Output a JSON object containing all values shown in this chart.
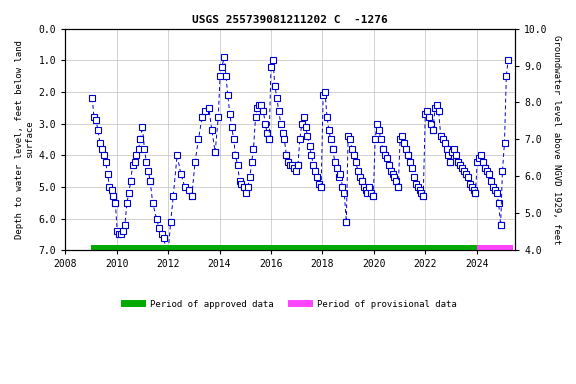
{
  "title": "USGS 255739081211202 C  -1276",
  "ylabel_left": "Depth to water level, feet below land\nsurface",
  "ylabel_right": "Groundwater level above NGVD 1929, feet",
  "ylim_left": [
    7.0,
    0.0
  ],
  "ylim_right": [
    4.0,
    10.0
  ],
  "xlim": [
    2008.0,
    2025.5
  ],
  "xticks": [
    2008,
    2010,
    2012,
    2014,
    2016,
    2018,
    2020,
    2022,
    2024
  ],
  "yticks_left": [
    0.0,
    1.0,
    2.0,
    3.0,
    4.0,
    5.0,
    6.0,
    7.0
  ],
  "yticks_right": [
    10.0,
    9.0,
    8.0,
    7.0,
    6.0,
    5.0,
    4.0
  ],
  "background_color": "#ffffff",
  "grid_color": "#c0c0c0",
  "data_color": "#0000cc",
  "approved_color": "#00aa00",
  "provisional_color": "#ff44ff",
  "approved_start": 2009.0,
  "approved_end": 2024.0,
  "provisional_start": 2024.0,
  "provisional_end": 2025.4,
  "segments": [
    {
      "x": [
        2009.05,
        2009.12,
        2009.2,
        2009.27,
        2009.35,
        2009.42,
        2009.5,
        2009.57,
        2009.65,
        2009.72,
        2009.8,
        2009.87,
        2009.95
      ],
      "y": [
        2.2,
        2.8,
        2.9,
        3.2,
        3.6,
        3.8,
        4.0,
        4.2,
        4.6,
        5.0,
        5.1,
        5.3,
        5.5
      ]
    },
    {
      "x": [
        2009.95,
        2010.02,
        2010.1,
        2010.17,
        2010.25,
        2010.32,
        2010.4,
        2010.47,
        2010.55,
        2010.62,
        2010.7,
        2010.77,
        2010.85,
        2010.92
      ],
      "y": [
        5.5,
        6.4,
        6.5,
        6.5,
        6.4,
        6.2,
        5.5,
        5.2,
        4.8,
        4.3,
        4.2,
        4.0,
        3.8,
        3.5
      ]
    },
    {
      "x": [
        2010.92,
        2011.0,
        2011.08,
        2011.15,
        2011.23,
        2011.3
      ],
      "y": [
        3.5,
        3.1,
        3.8,
        4.2,
        4.5,
        4.8
      ]
    },
    {
      "x": [
        2011.3,
        2011.4,
        2011.55,
        2011.65,
        2011.75,
        2011.83,
        2011.92,
        2011.99
      ],
      "y": [
        4.8,
        5.5,
        6.0,
        6.3,
        6.5,
        6.6,
        7.0,
        7.2
      ]
    },
    {
      "x": [
        2011.99,
        2012.1,
        2012.2,
        2012.35,
        2012.5,
        2012.65,
        2012.8,
        2012.92
      ],
      "y": [
        7.2,
        6.1,
        5.3,
        4.0,
        4.6,
        5.0,
        5.1,
        5.3
      ]
    },
    {
      "x": [
        2012.92,
        2013.05,
        2013.18,
        2013.32,
        2013.45,
        2013.58,
        2013.7,
        2013.83
      ],
      "y": [
        5.3,
        4.2,
        3.5,
        2.8,
        2.6,
        2.5,
        3.2,
        3.9
      ]
    },
    {
      "x": [
        2013.83,
        2013.95,
        2014.02,
        2014.1,
        2014.18,
        2014.25,
        2014.32,
        2014.4,
        2014.47,
        2014.55,
        2014.62,
        2014.7,
        2014.78,
        2014.85,
        2014.95
      ],
      "y": [
        3.9,
        2.8,
        1.5,
        1.2,
        0.9,
        1.5,
        2.1,
        2.7,
        3.1,
        3.5,
        4.0,
        4.3,
        4.8,
        4.9,
        5.0
      ]
    },
    {
      "x": [
        2014.95,
        2015.03,
        2015.1,
        2015.18,
        2015.25,
        2015.32,
        2015.4,
        2015.47,
        2015.55,
        2015.62,
        2015.7,
        2015.78,
        2015.85,
        2015.93
      ],
      "y": [
        5.0,
        5.2,
        5.0,
        4.7,
        4.2,
        3.8,
        2.8,
        2.5,
        2.4,
        2.4,
        2.6,
        3.0,
        3.3,
        3.5
      ]
    },
    {
      "x": [
        2015.93,
        2016.0,
        2016.08,
        2016.15,
        2016.23,
        2016.3,
        2016.38,
        2016.45,
        2016.52,
        2016.6
      ],
      "y": [
        3.5,
        1.2,
        1.0,
        1.8,
        2.2,
        2.6,
        3.0,
        3.3,
        3.5,
        4.0
      ]
    },
    {
      "x": [
        2016.6,
        2016.68,
        2016.75,
        2016.83,
        2016.9,
        2016.98,
        2017.05
      ],
      "y": [
        4.0,
        4.2,
        4.3,
        4.3,
        4.4,
        4.5,
        4.3
      ]
    },
    {
      "x": [
        2017.05,
        2017.12,
        2017.2,
        2017.27,
        2017.35,
        2017.42,
        2017.5,
        2017.57,
        2017.65,
        2017.72,
        2017.8,
        2017.87,
        2017.95
      ],
      "y": [
        4.3,
        3.5,
        3.0,
        2.8,
        3.1,
        3.4,
        3.7,
        4.0,
        4.3,
        4.5,
        4.7,
        4.9,
        5.0
      ]
    },
    {
      "x": [
        2017.95,
        2018.03,
        2018.1,
        2018.18,
        2018.25,
        2018.32,
        2018.4
      ],
      "y": [
        5.0,
        2.1,
        2.0,
        2.8,
        3.2,
        3.5,
        3.8
      ]
    },
    {
      "x": [
        2018.4,
        2018.48,
        2018.55,
        2018.63,
        2018.7,
        2018.78,
        2018.85,
        2018.93
      ],
      "y": [
        3.8,
        4.2,
        4.4,
        4.7,
        4.6,
        5.0,
        5.2,
        6.1
      ]
    },
    {
      "x": [
        2018.93,
        2019.0,
        2019.08,
        2019.15,
        2019.23,
        2019.3,
        2019.38,
        2019.45,
        2019.52
      ],
      "y": [
        6.1,
        3.4,
        3.5,
        3.8,
        4.0,
        4.2,
        4.5,
        4.7,
        4.8
      ]
    },
    {
      "x": [
        2019.52,
        2019.6,
        2019.68,
        2019.75,
        2019.83,
        2019.9,
        2019.98
      ],
      "y": [
        4.8,
        5.0,
        5.1,
        5.2,
        5.0,
        5.2,
        5.3
      ]
    },
    {
      "x": [
        2019.98,
        2020.05,
        2020.12,
        2020.2,
        2020.27,
        2020.35
      ],
      "y": [
        5.3,
        3.5,
        3.0,
        3.2,
        3.5,
        3.8
      ]
    },
    {
      "x": [
        2020.35,
        2020.43,
        2020.5,
        2020.58,
        2020.65,
        2020.73,
        2020.8,
        2020.88,
        2020.95
      ],
      "y": [
        3.8,
        4.0,
        4.1,
        4.3,
        4.5,
        4.6,
        4.7,
        4.8,
        5.0
      ]
    },
    {
      "x": [
        2020.95,
        2021.02,
        2021.1,
        2021.17,
        2021.25,
        2021.32
      ],
      "y": [
        5.0,
        3.5,
        3.4,
        3.6,
        3.8,
        4.0
      ]
    },
    {
      "x": [
        2021.32,
        2021.4,
        2021.48,
        2021.55,
        2021.63,
        2021.7,
        2021.78,
        2021.85,
        2021.92
      ],
      "y": [
        4.0,
        4.2,
        4.4,
        4.7,
        4.9,
        5.0,
        5.1,
        5.2,
        5.3
      ]
    },
    {
      "x": [
        2021.92,
        2022.0,
        2022.08,
        2022.15,
        2022.23,
        2022.3
      ],
      "y": [
        5.3,
        2.7,
        2.6,
        2.8,
        3.0,
        3.2
      ]
    },
    {
      "x": [
        2022.3,
        2022.38,
        2022.45,
        2022.52,
        2022.6,
        2022.68,
        2022.75,
        2022.83,
        2022.9,
        2022.98
      ],
      "y": [
        3.2,
        2.5,
        2.4,
        2.6,
        3.4,
        3.5,
        3.6,
        3.8,
        4.0,
        4.2
      ]
    },
    {
      "x": [
        2022.98,
        2023.05,
        2023.12,
        2023.2,
        2023.27
      ],
      "y": [
        4.2,
        3.9,
        3.8,
        4.0,
        4.2
      ]
    },
    {
      "x": [
        2023.27,
        2023.35,
        2023.43,
        2023.5,
        2023.58,
        2023.65,
        2023.73,
        2023.8,
        2023.88,
        2023.95
      ],
      "y": [
        4.2,
        4.3,
        4.4,
        4.5,
        4.6,
        4.7,
        4.9,
        5.0,
        5.1,
        5.2
      ]
    },
    {
      "x": [
        2023.95,
        2024.02,
        2024.1,
        2024.17,
        2024.25,
        2024.32
      ],
      "y": [
        5.2,
        4.2,
        4.1,
        4.0,
        4.2,
        4.4
      ]
    },
    {
      "x": [
        2024.32,
        2024.4,
        2024.47,
        2024.55,
        2024.62,
        2024.7,
        2024.78,
        2024.85,
        2024.93
      ],
      "y": [
        4.4,
        4.5,
        4.6,
        4.8,
        5.0,
        5.1,
        5.2,
        5.5,
        6.2
      ]
    },
    {
      "x": [
        2024.93,
        2025.0,
        2025.08,
        2025.15,
        2025.22
      ],
      "y": [
        6.2,
        4.5,
        3.6,
        1.5,
        1.0
      ]
    }
  ]
}
